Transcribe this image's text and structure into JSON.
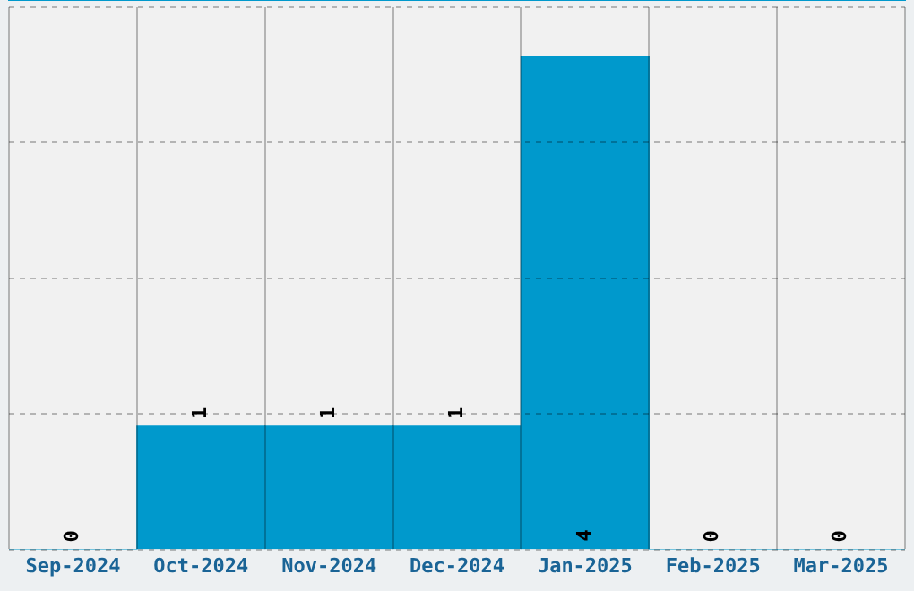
{
  "chart_data": {
    "type": "bar",
    "categories": [
      "Sep-2024",
      "Oct-2024",
      "Nov-2024",
      "Dec-2024",
      "Jan-2025",
      "Feb-2025",
      "Mar-2025"
    ],
    "values": [
      0,
      1,
      1,
      1,
      4,
      0,
      0
    ],
    "color": "#0099cc",
    "ylim": [
      0,
      4.4
    ],
    "yticks": [
      {
        "value": 0,
        "label": null
      },
      {
        "value": 1.1,
        "label": null
      },
      {
        "value": 2.2,
        "label": null
      },
      {
        "value": 3.3,
        "label": null
      },
      {
        "value": 4.4,
        "label": null
      }
    ],
    "grid": true,
    "tick_labels": "x",
    "data_labels": true
  }
}
